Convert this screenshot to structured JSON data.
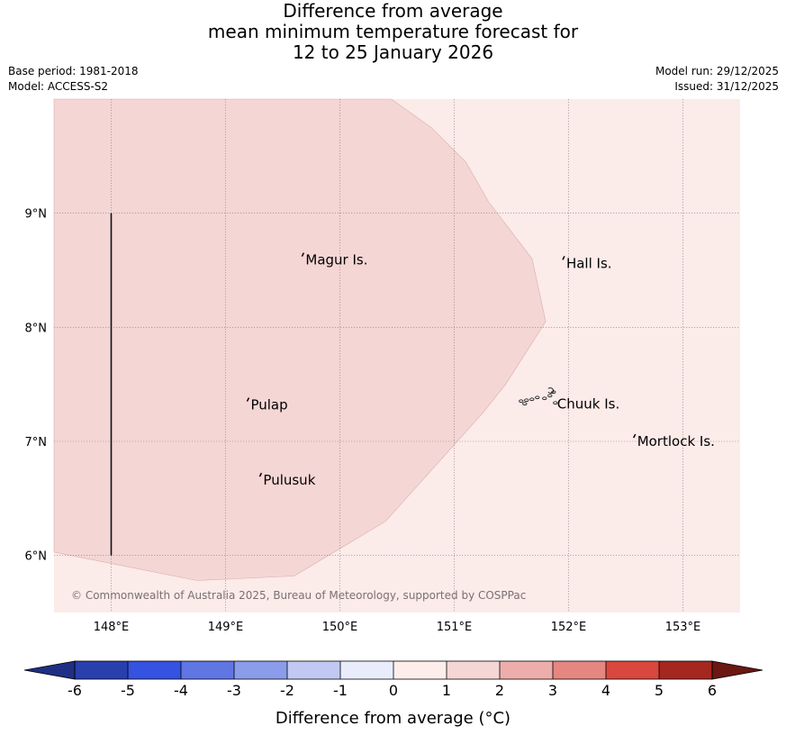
{
  "title": {
    "line1": "Difference from average",
    "line2": "mean minimum temperature forecast for",
    "line3": "12 to 25 January 2026"
  },
  "meta_left": {
    "base_period": "Base period: 1981-2018",
    "model": "Model: ACCESS-S2"
  },
  "meta_right": {
    "model_run": "Model run: 29/12/2025",
    "issued": "Issued: 31/12/2025"
  },
  "map": {
    "lon_range": [
      147.5,
      153.5
    ],
    "lat_range": [
      5.5,
      10.0
    ],
    "lat_ticks": [
      {
        "value": 6,
        "label": "6°N"
      },
      {
        "value": 7,
        "label": "7°N"
      },
      {
        "value": 8,
        "label": "8°N"
      },
      {
        "value": 9,
        "label": "9°N"
      }
    ],
    "lon_ticks": [
      {
        "value": 148,
        "label": "148°E"
      },
      {
        "value": 149,
        "label": "149°E"
      },
      {
        "value": 150,
        "label": "150°E"
      },
      {
        "value": 151,
        "label": "151°E"
      },
      {
        "value": 152,
        "label": "152°E"
      },
      {
        "value": 153,
        "label": "153°E"
      }
    ],
    "background_anomaly_band": "0 to 1",
    "background_color": "#fbebe9",
    "region_anomaly_band": "1 to 2",
    "region_color": "#f4d6d5",
    "region_outline": [
      [
        147.5,
        6.03
      ],
      [
        148.75,
        5.78
      ],
      [
        149.6,
        5.82
      ],
      [
        150.4,
        6.3
      ],
      [
        151.25,
        7.25
      ],
      [
        151.45,
        7.5
      ],
      [
        151.8,
        8.05
      ],
      [
        151.68,
        8.6
      ],
      [
        151.3,
        9.1
      ],
      [
        151.1,
        9.45
      ],
      [
        150.8,
        9.75
      ],
      [
        150.45,
        10.0
      ],
      [
        147.5,
        10.0
      ]
    ],
    "boundary_line": [
      [
        148.0,
        9.0
      ],
      [
        148.0,
        6.0
      ]
    ],
    "places": [
      {
        "name": "Magur Is.",
        "lon": 149.7,
        "lat": 8.55
      },
      {
        "name": "Hall Is.",
        "lon": 151.98,
        "lat": 8.52
      },
      {
        "name": "Pulap",
        "lon": 149.22,
        "lat": 7.28
      },
      {
        "name": "Chuuk Is.",
        "lon": 151.9,
        "lat": 7.29
      },
      {
        "name": "Mortlock Is.",
        "lon": 152.6,
        "lat": 6.96
      },
      {
        "name": "Pulusuk",
        "lon": 149.33,
        "lat": 6.62
      }
    ],
    "copyright": "© Commonwealth of Australia 2025, Bureau of Meteorology, supported by COSPPac"
  },
  "colorbar": {
    "label": "Difference from average (°C)",
    "ticks": [
      "-6",
      "-5",
      "-4",
      "-3",
      "-2",
      "-1",
      "0",
      "1",
      "2",
      "3",
      "4",
      "5",
      "6"
    ],
    "colors": [
      "#293fad",
      "#3552e0",
      "#5f76e3",
      "#8a9cea",
      "#c1c9f2",
      "#e9edfb",
      "#fdeeec",
      "#f4d6d5",
      "#edaeab",
      "#e68680",
      "#d9473e",
      "#a6271f"
    ],
    "under_color": "#1f2f84",
    "over_color": "#6b1712"
  }
}
